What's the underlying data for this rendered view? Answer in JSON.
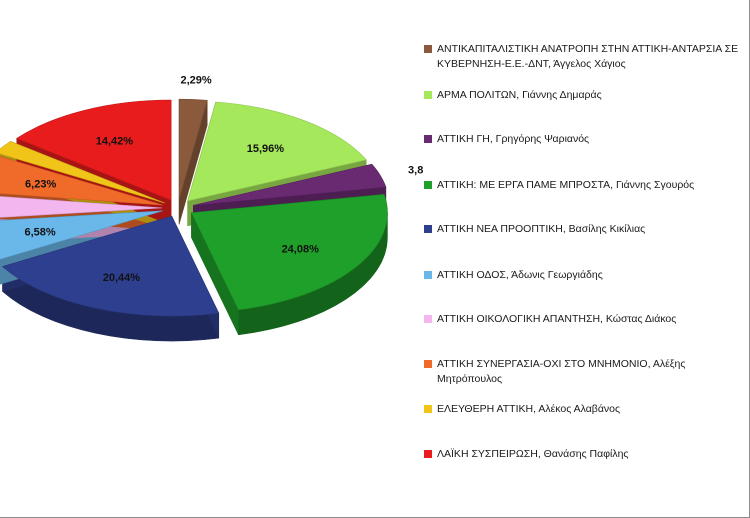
{
  "chart_data": {
    "type": "pie",
    "title": "",
    "legend_position": "right",
    "slices": [
      {
        "name": "ΑΝΤΙΚΑΠΙΤΑΛΙΣΤΙΚΗ  ΑΝΑΤΡΟΠΗ ΣΤΗΝ ΑΤΤΙΚΗ-ΑΝΤΑΡΣΙΑ ΣΕ ΚΥΒΕΡΝΗΣΗ-Ε.Ε.-ΔΝΤ,  Άγγελος Χάγιος",
        "value": 2.29,
        "label": "2,29%",
        "color": "#8b5a3c"
      },
      {
        "name": "ΑΡΜΑ ΠΟΛΙΤΩΝ,  Γιάννης Δημαράς",
        "value": 15.96,
        "label": "15,96%",
        "color": "#a6e85c"
      },
      {
        "name": "ΑΤΤΙΚΗ ΓΗ,  Γρηγόρης Ψαριανός",
        "value": 3.81,
        "label": "3,81%",
        "color": "#6a2a72"
      },
      {
        "name": "ΑΤΤΙΚΗ: ΜΕ ΕΡΓΑ ΠΑΜΕ ΜΠΡΟΣΤΑ,  Γιάννης Σγουρός",
        "value": 24.08,
        "label": "24,08%",
        "color": "#1fa02a"
      },
      {
        "name": "ΑΤΤΙΚΗ ΝΕΑ ΠΡΟΟΠΤΙΚΗ,  Βασίλης Κικίλιας",
        "value": 20.44,
        "label": "20,44%",
        "color": "#2e3f8f"
      },
      {
        "name": "ΑΤΤΙΚΗ ΟΔΟΣ,  Άδωνις Γεωργιάδης",
        "value": 6.58,
        "label": "6,58%",
        "color": "#6ab7ea"
      },
      {
        "name": "ΑΤΤΙΚΗ ΟΙΚΟΛΟΓΙΚΗ ΑΠΑΝΤΗΣΗ,  Κώστας Διάκος",
        "value": 4.02,
        "label": "",
        "color": "#f3b6ef"
      },
      {
        "name": "ΑΤΤΙΚΗ ΣΥΝΕΡΓΑΣΙΑ-ΟΧΙ ΣΤΟ ΜΝΗΜΟΝΙΟ,  Αλέξης Μητρόπουλος",
        "value": 6.23,
        "label": "6,23%",
        "color": "#f06a2a"
      },
      {
        "name": "ΕΛΕΥΘΕΡΗ ΑΤΤΙΚΗ,  Αλέκος Αλαβάνος",
        "value": 2.16,
        "label": "2,16%",
        "color": "#f0c419"
      },
      {
        "name": "ΛΑΪΚΗ ΣΥΣΠΕΙΡΩΣΗ,  Θανάσης Παφίλης",
        "value": 14.42,
        "label": "14,42%",
        "color": "#e81c1c"
      }
    ]
  }
}
